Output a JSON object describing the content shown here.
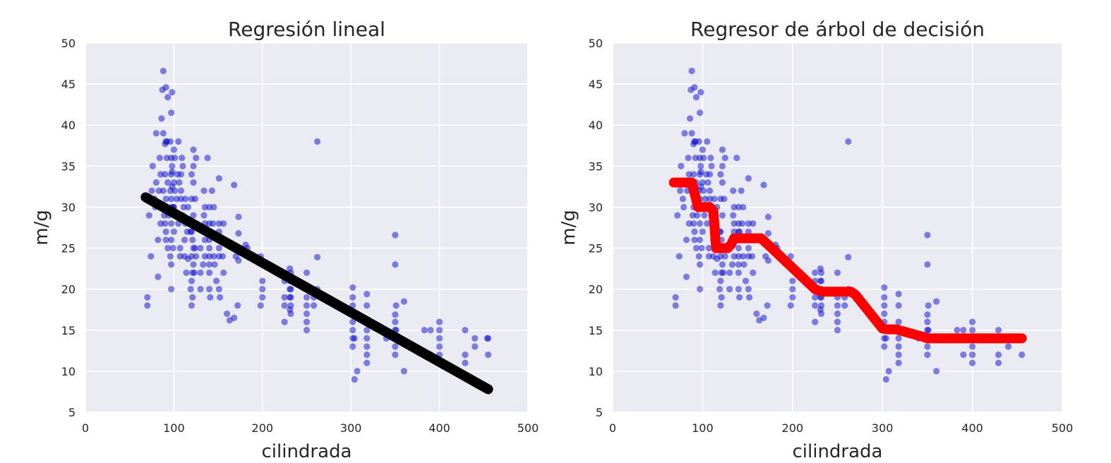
{
  "chart_data": [
    {
      "type": "scatter",
      "title": "Regresión lineal",
      "xlabel": "cilindrada",
      "ylabel": "m/g",
      "xlim": [
        0,
        500
      ],
      "ylim": [
        5,
        50
      ],
      "xticks": [
        0,
        100,
        200,
        300,
        400,
        500
      ],
      "yticks": [
        5,
        10,
        15,
        20,
        25,
        30,
        35,
        40,
        45,
        50
      ],
      "grid": true,
      "colors": {
        "points": "#0a0acc",
        "fit": "#000000",
        "background": "#eaeaf2"
      },
      "fit_line": {
        "type": "line",
        "x": [
          68,
          455
        ],
        "y": [
          31.2,
          7.8
        ]
      }
    },
    {
      "type": "scatter",
      "title": "Regresor de árbol de decisión",
      "xlabel": "cilindrada",
      "ylabel": "m/g",
      "xlim": [
        0,
        500
      ],
      "ylim": [
        5,
        50
      ],
      "xticks": [
        0,
        100,
        200,
        300,
        400,
        500
      ],
      "yticks": [
        5,
        10,
        15,
        20,
        25,
        30,
        35,
        40,
        45,
        50
      ],
      "grid": true,
      "colors": {
        "points": "#0a0acc",
        "fit": "#ff0000",
        "background": "#eaeaf2"
      },
      "fit_line": {
        "type": "line",
        "x": [
          68,
          88,
          95,
          108,
          112,
          115,
          128,
          132,
          135,
          165,
          172,
          225,
          232,
          265,
          270,
          300,
          305,
          315,
          345,
          350,
          455
        ],
        "y": [
          33,
          33,
          30,
          30,
          29.5,
          25,
          25,
          25.5,
          26.2,
          26.2,
          25.5,
          20,
          19.7,
          19.7,
          19.3,
          15.2,
          15.1,
          15.1,
          14.2,
          14,
          14
        ]
      }
    }
  ],
  "scatter_points": [
    [
      70,
      18
    ],
    [
      70,
      19
    ],
    [
      72,
      29
    ],
    [
      74,
      24
    ],
    [
      75,
      32
    ],
    [
      76,
      35
    ],
    [
      78,
      31
    ],
    [
      79,
      30
    ],
    [
      80,
      39
    ],
    [
      80,
      33
    ],
    [
      82,
      26
    ],
    [
      82,
      21.5
    ],
    [
      83,
      32
    ],
    [
      84,
      36
    ],
    [
      85,
      28
    ],
    [
      85,
      34
    ],
    [
      86,
      40.8
    ],
    [
      87,
      44.3
    ],
    [
      88,
      46.6
    ],
    [
      88,
      39
    ],
    [
      88,
      32
    ],
    [
      89,
      29
    ],
    [
      90,
      37.7
    ],
    [
      90,
      34
    ],
    [
      90,
      30
    ],
    [
      90,
      28
    ],
    [
      91,
      38
    ],
    [
      91,
      44.6
    ],
    [
      91,
      31
    ],
    [
      91,
      27
    ],
    [
      91,
      26
    ],
    [
      92,
      38
    ],
    [
      92,
      36
    ],
    [
      93,
      43.4
    ],
    [
      93,
      33
    ],
    [
      93,
      25
    ],
    [
      94,
      29
    ],
    [
      96,
      38
    ],
    [
      96,
      32
    ],
    [
      96,
      24
    ],
    [
      97,
      41.5
    ],
    [
      97,
      36
    ],
    [
      97,
      34
    ],
    [
      97,
      31
    ],
    [
      97,
      28
    ],
    [
      97,
      26
    ],
    [
      97,
      23
    ],
    [
      97,
      20
    ],
    [
      98,
      32.5
    ],
    [
      98,
      30
    ],
    [
      98,
      34.3
    ],
    [
      98,
      44
    ],
    [
      98,
      35
    ],
    [
      99,
      30
    ],
    [
      99,
      25
    ],
    [
      100,
      37
    ],
    [
      100,
      33
    ],
    [
      100,
      30
    ],
    [
      100,
      27
    ],
    [
      101,
      36
    ],
    [
      101,
      32
    ],
    [
      102,
      29
    ],
    [
      103,
      31
    ],
    [
      104,
      34
    ],
    [
      105,
      38
    ],
    [
      105,
      28
    ],
    [
      106,
      33
    ],
    [
      107,
      25
    ],
    [
      107,
      24
    ],
    [
      108,
      31
    ],
    [
      108,
      34
    ],
    [
      108,
      32
    ],
    [
      109,
      36
    ],
    [
      110,
      29
    ],
    [
      110,
      35
    ],
    [
      111,
      30
    ],
    [
      112,
      26
    ],
    [
      112,
      24
    ],
    [
      113,
      31
    ],
    [
      113,
      28
    ],
    [
      114,
      22
    ],
    [
      115,
      27
    ],
    [
      116,
      30
    ],
    [
      116,
      23.7
    ],
    [
      119,
      27
    ],
    [
      119,
      20
    ],
    [
      120,
      34
    ],
    [
      120,
      31
    ],
    [
      120,
      27
    ],
    [
      120,
      24
    ],
    [
      120,
      21
    ],
    [
      120,
      18
    ],
    [
      121,
      26
    ],
    [
      121,
      22
    ],
    [
      121,
      19
    ],
    [
      122,
      37
    ],
    [
      122,
      35
    ],
    [
      122,
      33
    ],
    [
      122,
      29
    ],
    [
      122,
      25
    ],
    [
      122,
      23
    ],
    [
      123,
      22
    ],
    [
      124,
      31
    ],
    [
      124,
      25
    ],
    [
      125,
      36
    ],
    [
      125,
      24
    ],
    [
      130,
      25
    ],
    [
      130,
      22
    ],
    [
      130,
      20
    ],
    [
      133,
      23
    ],
    [
      134,
      32
    ],
    [
      134,
      29
    ],
    [
      135,
      30
    ],
    [
      135,
      28
    ],
    [
      135,
      26
    ],
    [
      135,
      27
    ],
    [
      135,
      24
    ],
    [
      138,
      36
    ],
    [
      140,
      27
    ],
    [
      140,
      30
    ],
    [
      140,
      28
    ],
    [
      140,
      26
    ],
    [
      140,
      25
    ],
    [
      140,
      24
    ],
    [
      140,
      23
    ],
    [
      140,
      22
    ],
    [
      140,
      20
    ],
    [
      141,
      19
    ],
    [
      141,
      27
    ],
    [
      143,
      32
    ],
    [
      144,
      28
    ],
    [
      145,
      30
    ],
    [
      145,
      24
    ],
    [
      146,
      23
    ],
    [
      148,
      21
    ],
    [
      151,
      27
    ],
    [
      151,
      25
    ],
    [
      151,
      28
    ],
    [
      151,
      33.5
    ],
    [
      151,
      26
    ],
    [
      151,
      24
    ],
    [
      151,
      20
    ],
    [
      152,
      19
    ],
    [
      155,
      24
    ],
    [
      156,
      22
    ],
    [
      156,
      28
    ],
    [
      160,
      17
    ],
    [
      163,
      16.2
    ],
    [
      168,
      16.5
    ],
    [
      168,
      32.7
    ],
    [
      170,
      24
    ],
    [
      172,
      18
    ],
    [
      173,
      28.8
    ],
    [
      173,
      23.5
    ],
    [
      173,
      26.8
    ],
    [
      181,
      25.4
    ],
    [
      183,
      25
    ],
    [
      198,
      24
    ],
    [
      198,
      18
    ],
    [
      200,
      21
    ],
    [
      200,
      20
    ],
    [
      200,
      19
    ],
    [
      225,
      16
    ],
    [
      225,
      19
    ],
    [
      225,
      21
    ],
    [
      225,
      18
    ],
    [
      225,
      22
    ],
    [
      231,
      22.5
    ],
    [
      231,
      21
    ],
    [
      231,
      20
    ],
    [
      231,
      19
    ],
    [
      231,
      17.5
    ],
    [
      232,
      20
    ],
    [
      232,
      18
    ],
    [
      232,
      19
    ],
    [
      232,
      21
    ],
    [
      232,
      17
    ],
    [
      232,
      22
    ],
    [
      250,
      22
    ],
    [
      250,
      19
    ],
    [
      250,
      18
    ],
    [
      250,
      17
    ],
    [
      250,
      16
    ],
    [
      250,
      15
    ],
    [
      258,
      19
    ],
    [
      258,
      18
    ],
    [
      262,
      38
    ],
    [
      262,
      23.9
    ],
    [
      262,
      20
    ],
    [
      302,
      20.2
    ],
    [
      302,
      19
    ],
    [
      302,
      18
    ],
    [
      302,
      17
    ],
    [
      302,
      16
    ],
    [
      302,
      15
    ],
    [
      302,
      14
    ],
    [
      302,
      13
    ],
    [
      304,
      9
    ],
    [
      304,
      14
    ],
    [
      307,
      10
    ],
    [
      318,
      19.4
    ],
    [
      318,
      18
    ],
    [
      318,
      16
    ],
    [
      318,
      15
    ],
    [
      318,
      14
    ],
    [
      318,
      13
    ],
    [
      318,
      12
    ],
    [
      318,
      11
    ],
    [
      340,
      14
    ],
    [
      350,
      26.6
    ],
    [
      350,
      23
    ],
    [
      350,
      16.9
    ],
    [
      350,
      16
    ],
    [
      350,
      15
    ],
    [
      350,
      14
    ],
    [
      350,
      13
    ],
    [
      350,
      12
    ],
    [
      351,
      18
    ],
    [
      351,
      15
    ],
    [
      360,
      18.5
    ],
    [
      360,
      10
    ],
    [
      383,
      15
    ],
    [
      390,
      12
    ],
    [
      390,
      15
    ],
    [
      400,
      16
    ],
    [
      400,
      15
    ],
    [
      400,
      14
    ],
    [
      400,
      13
    ],
    [
      400,
      12
    ],
    [
      400,
      11
    ],
    [
      429,
      15
    ],
    [
      429,
      12
    ],
    [
      429,
      11
    ],
    [
      440,
      13
    ],
    [
      440,
      14
    ],
    [
      454,
      14
    ],
    [
      455,
      12
    ],
    [
      455,
      14
    ]
  ]
}
